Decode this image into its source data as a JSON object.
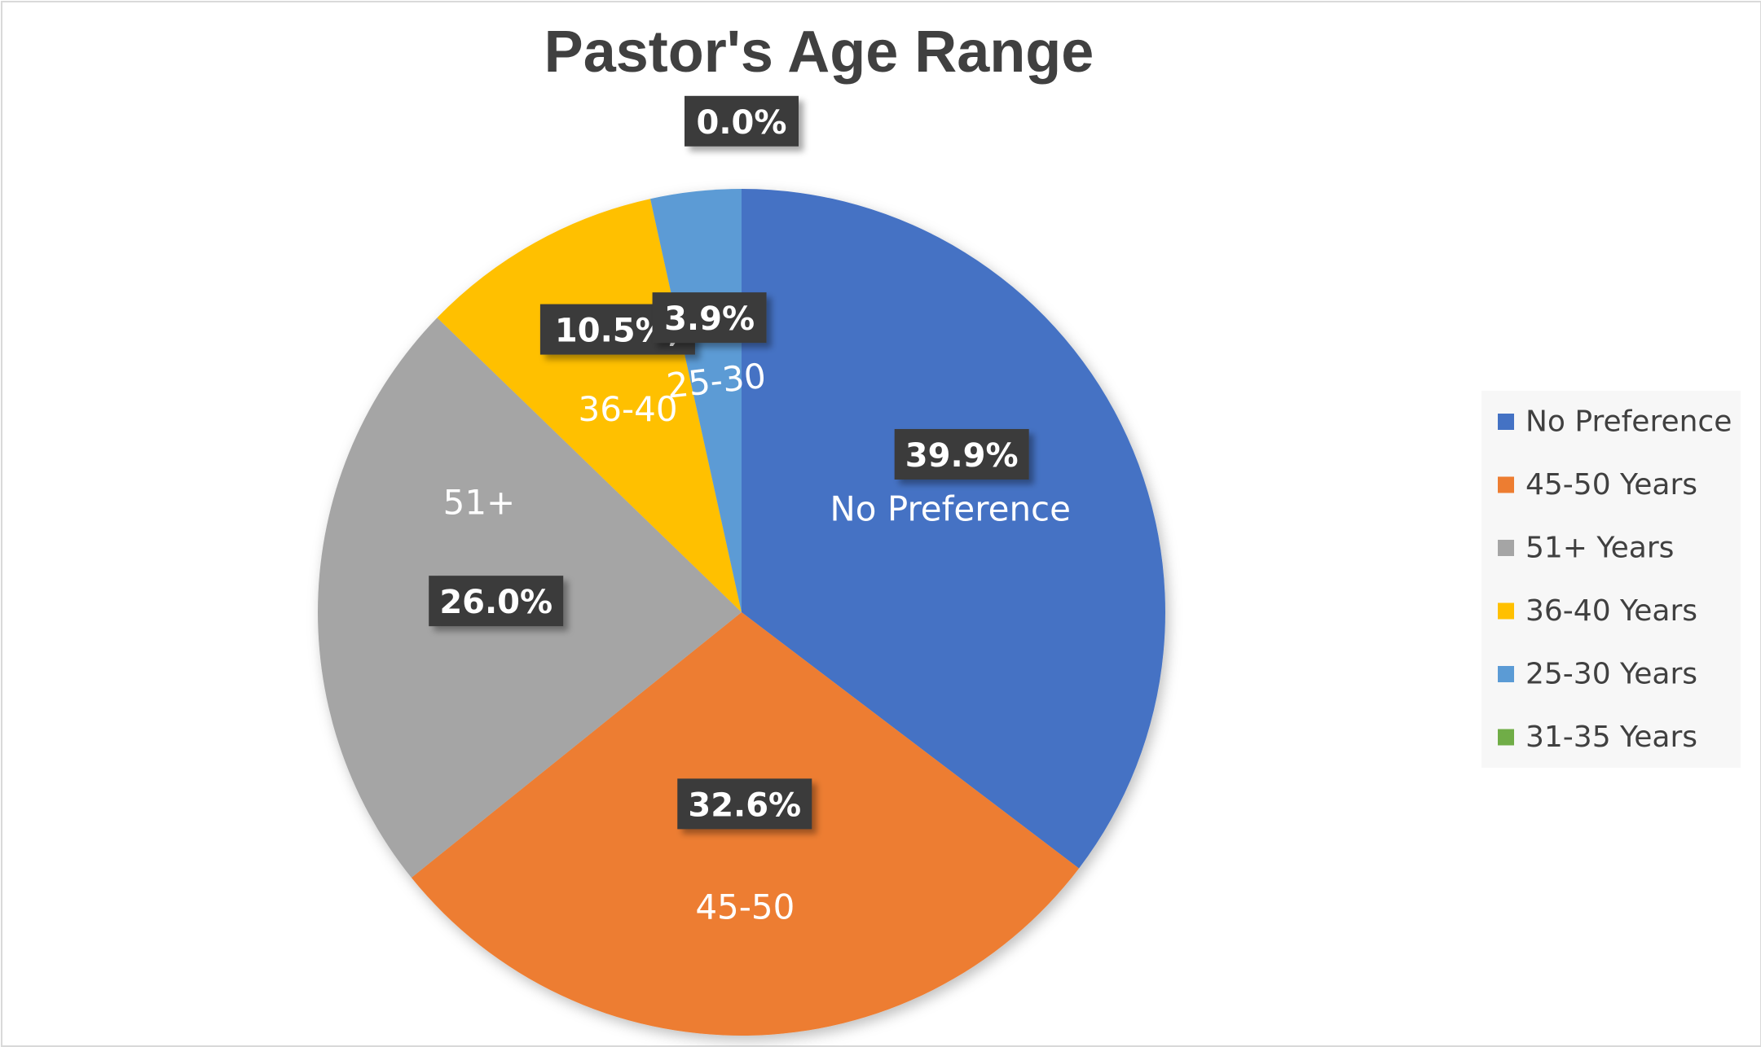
{
  "chart_data": {
    "type": "pie",
    "title": "Pastor's Age Range",
    "legend_position": "right",
    "categories": [
      "No Preference",
      "45-50 Years",
      "51+ Years",
      "36-40 Years",
      "25-30 Years",
      "31-35 Years"
    ],
    "values": [
      39.9,
      32.6,
      26.0,
      10.5,
      3.9,
      0.0
    ],
    "colors": [
      "#4472c4",
      "#ed7d31",
      "#a5a5a5",
      "#ffc000",
      "#5b9bd5",
      "#70ad47"
    ],
    "slice_labels": [
      "No Preference",
      "45-50",
      "51+",
      "36-40",
      "25-30",
      ""
    ],
    "value_labels": [
      "39.9%",
      "32.6%",
      "26.0%",
      "10.5%,",
      "3.9%",
      "0.0%"
    ]
  }
}
